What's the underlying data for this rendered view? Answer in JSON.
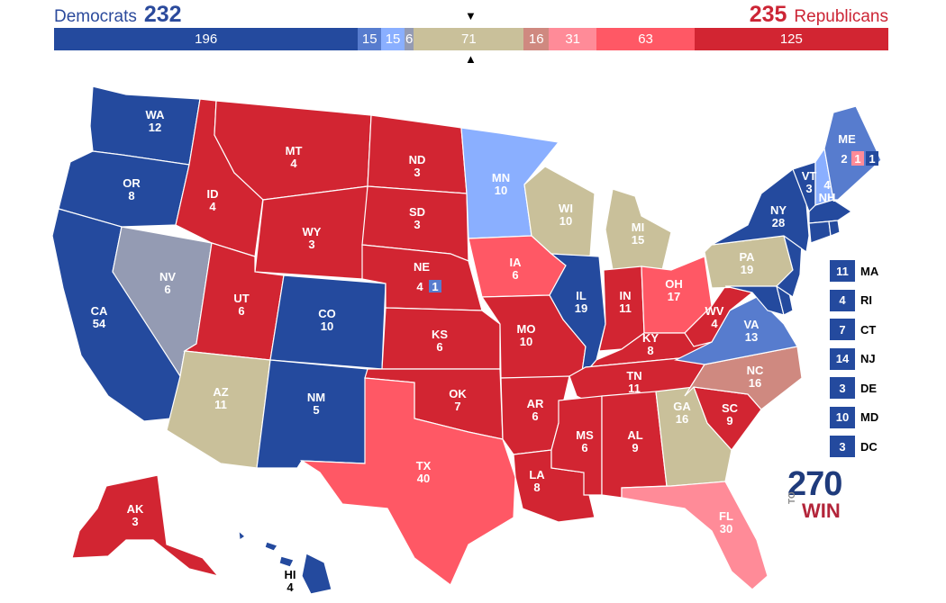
{
  "header": {
    "dem_label": "Democrats",
    "dem_total": "232",
    "rep_total": "235",
    "rep_label": "Republicans"
  },
  "colors": {
    "safe_dem": "#244a9e",
    "likely_dem": "#577cce",
    "lean_dem": "#8aafff",
    "tilt_dem": "#949bb3",
    "tossup": "#c9c09a",
    "tilt_rep": "#cf8980",
    "lean_rep": "#ff8b98",
    "likely_rep": "#ff5865",
    "safe_rep": "#d22532"
  },
  "bar": [
    {
      "label": "196",
      "value": 196,
      "rating": "safe_dem"
    },
    {
      "label": "15",
      "value": 15,
      "rating": "likely_dem"
    },
    {
      "label": "15",
      "value": 15,
      "rating": "lean_dem"
    },
    {
      "label": "6",
      "value": 6,
      "rating": "tilt_dem"
    },
    {
      "label": "71",
      "value": 71,
      "rating": "tossup"
    },
    {
      "label": "16",
      "value": 16,
      "rating": "tilt_rep"
    },
    {
      "label": "31",
      "value": 31,
      "rating": "lean_rep"
    },
    {
      "label": "63",
      "value": 63,
      "rating": "likely_rep"
    },
    {
      "label": "125",
      "value": 125,
      "rating": "safe_rep"
    }
  ],
  "markers": {
    "top": "▼",
    "bottom": "▲"
  },
  "states": {
    "WA": {
      "name": "WA",
      "ev": "12",
      "rating": "safe_dem"
    },
    "OR": {
      "name": "OR",
      "ev": "8",
      "rating": "safe_dem"
    },
    "CA": {
      "name": "CA",
      "ev": "54",
      "rating": "safe_dem"
    },
    "NV": {
      "name": "NV",
      "ev": "6",
      "rating": "tilt_dem"
    },
    "ID": {
      "name": "ID",
      "ev": "4",
      "rating": "safe_rep"
    },
    "MT": {
      "name": "MT",
      "ev": "4",
      "rating": "safe_rep"
    },
    "WY": {
      "name": "WY",
      "ev": "3",
      "rating": "safe_rep"
    },
    "UT": {
      "name": "UT",
      "ev": "6",
      "rating": "safe_rep"
    },
    "AZ": {
      "name": "AZ",
      "ev": "11",
      "rating": "tossup"
    },
    "CO": {
      "name": "CO",
      "ev": "10",
      "rating": "safe_dem"
    },
    "NM": {
      "name": "NM",
      "ev": "5",
      "rating": "safe_dem"
    },
    "ND": {
      "name": "ND",
      "ev": "3",
      "rating": "safe_rep"
    },
    "SD": {
      "name": "SD",
      "ev": "3",
      "rating": "safe_rep"
    },
    "NE": {
      "name": "NE",
      "ev": "4",
      "rating": "safe_rep",
      "district": "1"
    },
    "KS": {
      "name": "KS",
      "ev": "6",
      "rating": "safe_rep"
    },
    "OK": {
      "name": "OK",
      "ev": "7",
      "rating": "safe_rep"
    },
    "TX": {
      "name": "TX",
      "ev": "40",
      "rating": "likely_rep"
    },
    "MN": {
      "name": "MN",
      "ev": "10",
      "rating": "lean_dem"
    },
    "IA": {
      "name": "IA",
      "ev": "6",
      "rating": "likely_rep"
    },
    "MO": {
      "name": "MO",
      "ev": "10",
      "rating": "safe_rep"
    },
    "AR": {
      "name": "AR",
      "ev": "6",
      "rating": "safe_rep"
    },
    "LA": {
      "name": "LA",
      "ev": "8",
      "rating": "safe_rep"
    },
    "WI": {
      "name": "WI",
      "ev": "10",
      "rating": "tossup"
    },
    "IL": {
      "name": "IL",
      "ev": "19",
      "rating": "safe_dem"
    },
    "MI": {
      "name": "MI",
      "ev": "15",
      "rating": "tossup"
    },
    "IN": {
      "name": "IN",
      "ev": "11",
      "rating": "safe_rep"
    },
    "OH": {
      "name": "OH",
      "ev": "17",
      "rating": "likely_rep"
    },
    "KY": {
      "name": "KY",
      "ev": "8",
      "rating": "safe_rep"
    },
    "TN": {
      "name": "TN",
      "ev": "11",
      "rating": "safe_rep"
    },
    "MS": {
      "name": "MS",
      "ev": "6",
      "rating": "safe_rep"
    },
    "AL": {
      "name": "AL",
      "ev": "9",
      "rating": "safe_rep"
    },
    "GA": {
      "name": "GA",
      "ev": "16",
      "rating": "tossup"
    },
    "FL": {
      "name": "FL",
      "ev": "30",
      "rating": "lean_rep"
    },
    "SC": {
      "name": "SC",
      "ev": "9",
      "rating": "safe_rep"
    },
    "NC": {
      "name": "NC",
      "ev": "16",
      "rating": "tilt_rep"
    },
    "VA": {
      "name": "VA",
      "ev": "13",
      "rating": "likely_dem"
    },
    "WV": {
      "name": "WV",
      "ev": "4",
      "rating": "safe_rep"
    },
    "PA": {
      "name": "PA",
      "ev": "19",
      "rating": "tossup"
    },
    "NY": {
      "name": "NY",
      "ev": "28",
      "rating": "safe_dem"
    },
    "VT": {
      "name": "VT",
      "ev": "3",
      "rating": "safe_dem"
    },
    "NH": {
      "name": "NH",
      "ev": "4",
      "rating": "lean_dem"
    },
    "ME": {
      "name": "ME",
      "ev": "2",
      "rating": "likely_dem",
      "district1": "1",
      "district2": "1"
    },
    "AK": {
      "name": "AK",
      "ev": "3",
      "rating": "safe_rep"
    },
    "HI": {
      "name": "HI",
      "ev": "4",
      "rating": "safe_dem"
    }
  },
  "small_states": [
    {
      "ev": "11",
      "name": "MA"
    },
    {
      "ev": "4",
      "name": "RI"
    },
    {
      "ev": "7",
      "name": "CT"
    },
    {
      "ev": "14",
      "name": "NJ"
    },
    {
      "ev": "3",
      "name": "DE"
    },
    {
      "ev": "10",
      "name": "MD"
    },
    {
      "ev": "3",
      "name": "DC"
    }
  ],
  "logo": {
    "number": "270",
    "to": "TO",
    "win": "WIN"
  }
}
